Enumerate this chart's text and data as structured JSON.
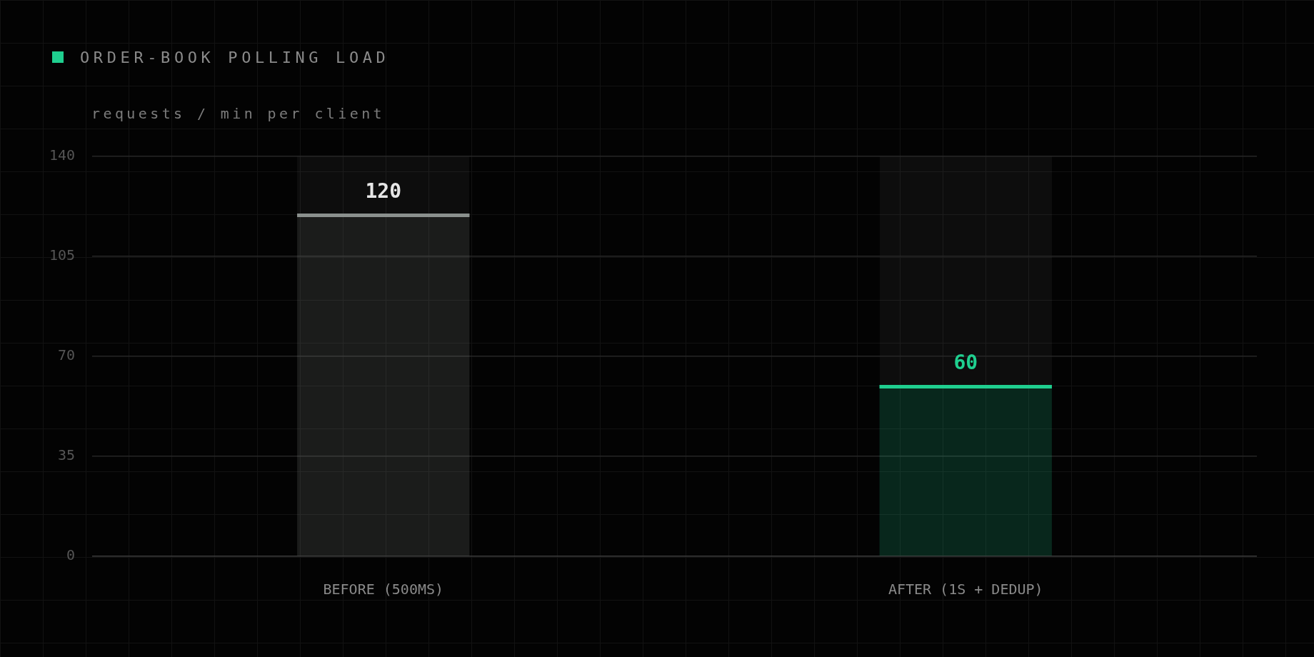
{
  "chart_data": {
    "type": "bar",
    "title": "ORDER-BOOK POLLING LOAD",
    "ylabel": "requests / min per client",
    "categories": [
      "BEFORE (500MS)",
      "AFTER (1S + DEDUP)"
    ],
    "values": [
      120,
      60
    ],
    "colors": [
      "#8a908d",
      "#1fcf8f"
    ],
    "ylim": [
      0,
      140
    ],
    "yticks": [
      0,
      35,
      70,
      105,
      140
    ],
    "grid": "y",
    "data_labels": true
  }
}
